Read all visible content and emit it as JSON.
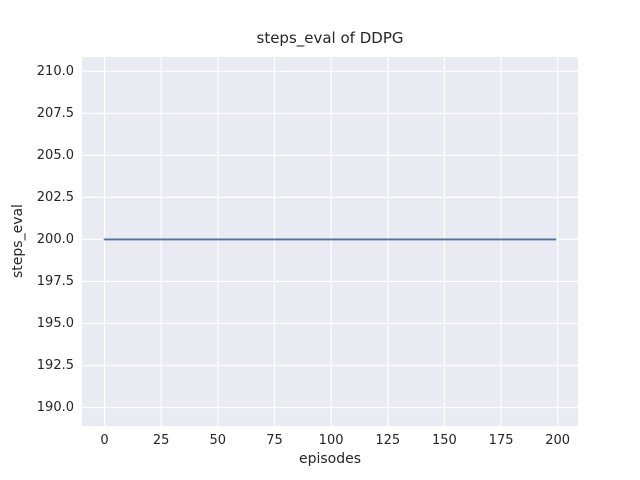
{
  "chart_data": {
    "type": "line",
    "title": "steps_eval of DDPG",
    "xlabel": "episodes",
    "ylabel": "steps_eval",
    "xlim": [
      -9.95,
      208.95
    ],
    "ylim": [
      188.9,
      210.85
    ],
    "grid": true,
    "legend": false,
    "xticks": [
      {
        "value": 0,
        "label": "0"
      },
      {
        "value": 25,
        "label": "25"
      },
      {
        "value": 50,
        "label": "50"
      },
      {
        "value": 75,
        "label": "75"
      },
      {
        "value": 100,
        "label": "100"
      },
      {
        "value": 125,
        "label": "125"
      },
      {
        "value": 150,
        "label": "150"
      },
      {
        "value": 175,
        "label": "175"
      },
      {
        "value": 200,
        "label": "200"
      }
    ],
    "yticks": [
      {
        "value": 190.0,
        "label": "190.0"
      },
      {
        "value": 192.5,
        "label": "192.5"
      },
      {
        "value": 195.0,
        "label": "195.0"
      },
      {
        "value": 197.5,
        "label": "197.5"
      },
      {
        "value": 200.0,
        "label": "200.0"
      },
      {
        "value": 202.5,
        "label": "202.5"
      },
      {
        "value": 205.0,
        "label": "205.0"
      },
      {
        "value": 207.5,
        "label": "207.5"
      },
      {
        "value": 210.0,
        "label": "210.0"
      }
    ],
    "series": [
      {
        "name": "steps_eval",
        "color": "#4c72b0",
        "description": "constant value 200 across all episodes",
        "x": [
          0,
          199
        ],
        "y": [
          200,
          200
        ]
      }
    ],
    "style": {
      "figure_background": "#ffffff",
      "plot_background": "#eaeaf2",
      "grid_color": "#ffffff",
      "text_color": "#262626"
    }
  }
}
